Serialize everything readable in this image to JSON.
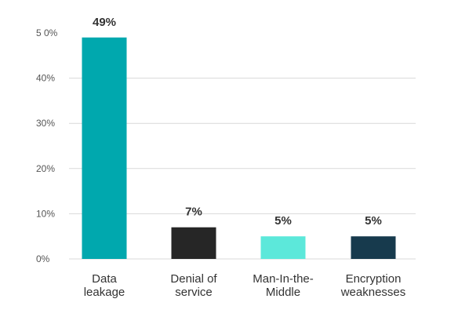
{
  "chart_data": {
    "type": "bar",
    "title": "",
    "xlabel": "",
    "ylabel": "",
    "categories": [
      [
        "Data",
        "leakage"
      ],
      [
        "Denial of",
        "service"
      ],
      [
        "Man-In-the-",
        "Middle"
      ],
      [
        "Encryption",
        "weaknesses"
      ]
    ],
    "values": [
      49,
      7,
      5,
      5
    ],
    "value_labels": [
      "49%",
      "7%",
      "5%",
      "5%"
    ],
    "bar_colors": [
      "#00a8ae",
      "#262626",
      "#5ce8da",
      "#173a4d"
    ],
    "ylim": [
      0,
      50
    ],
    "yticks": [
      0,
      10,
      20,
      30,
      40,
      50
    ],
    "ytick_labels": [
      "0%",
      "10%",
      "20%",
      "30%",
      "40%",
      "5 0%"
    ],
    "grid": true
  }
}
